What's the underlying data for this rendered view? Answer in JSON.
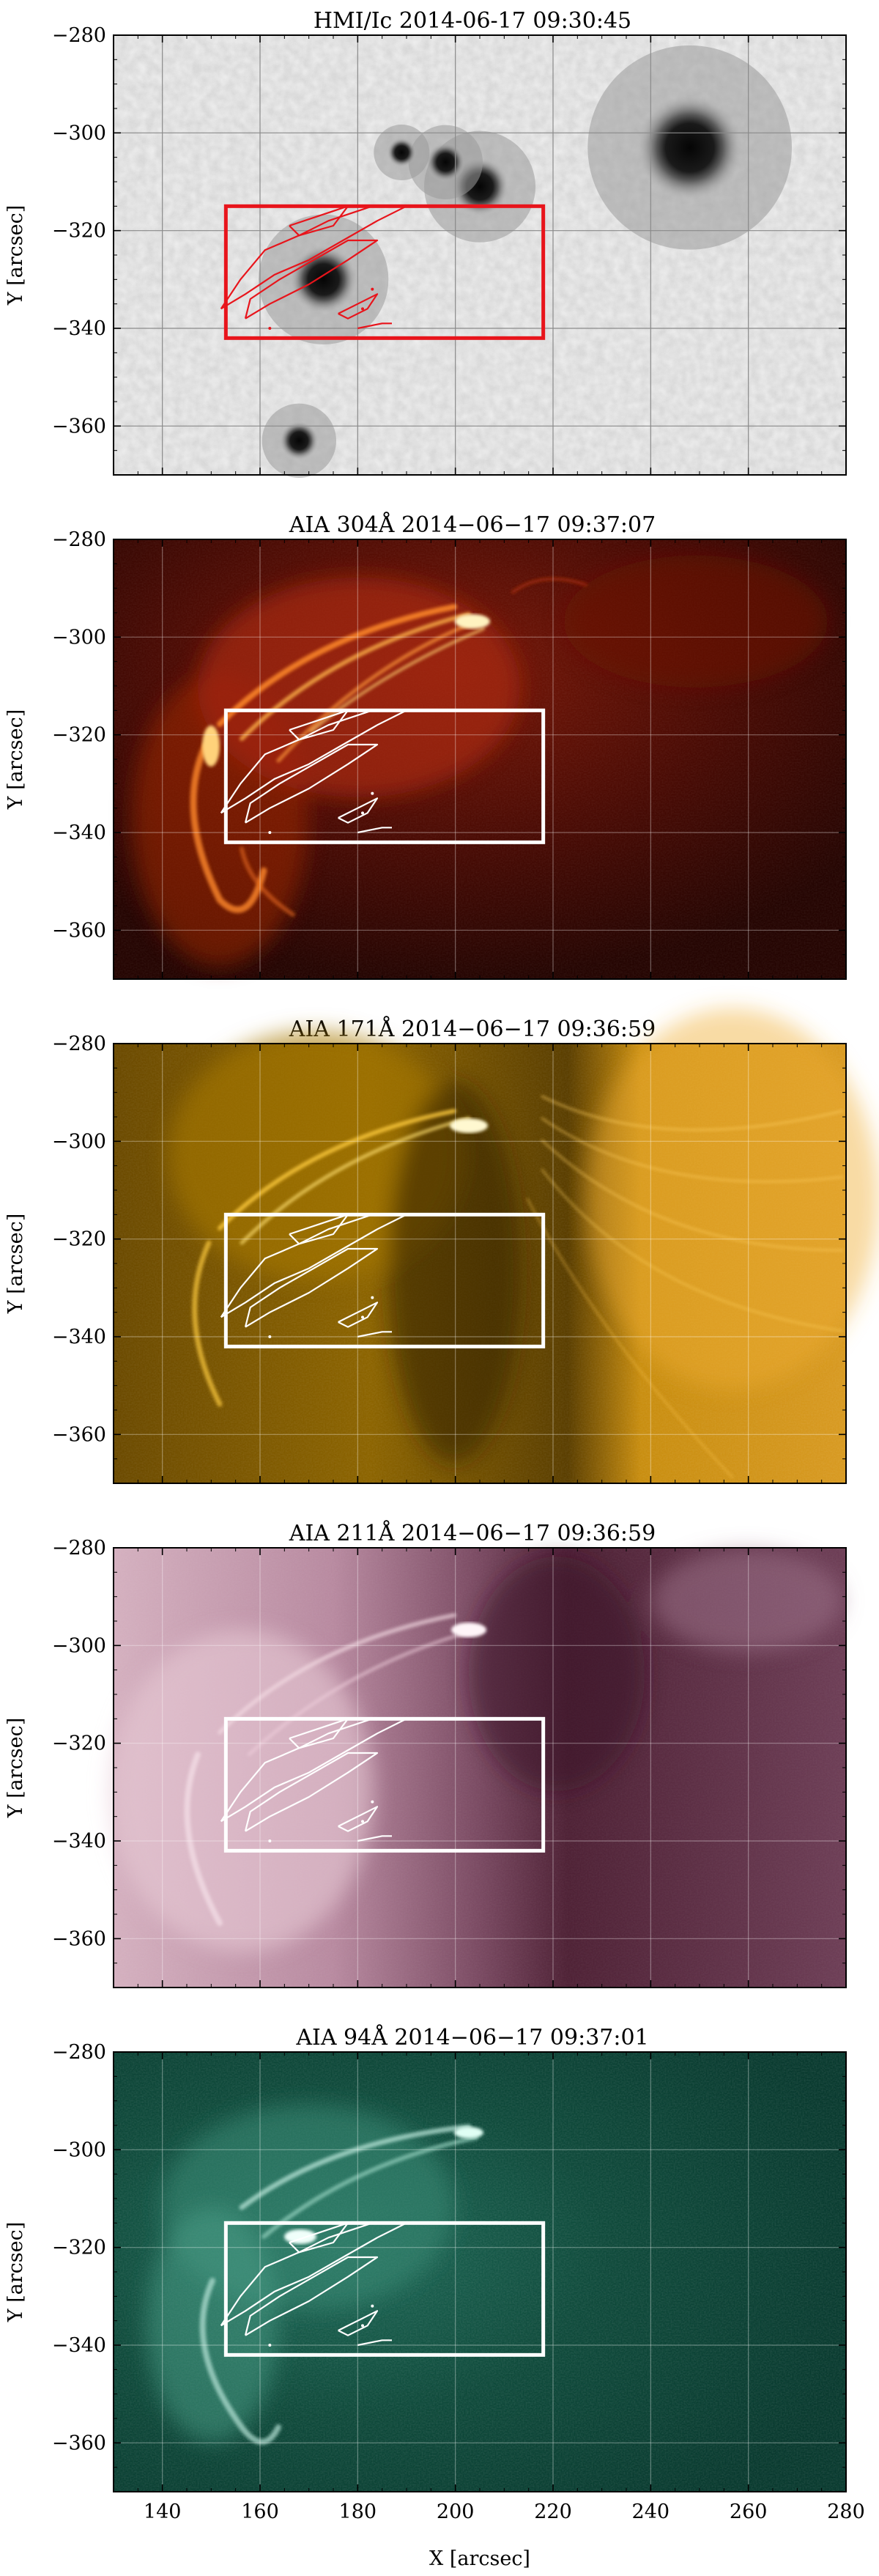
{
  "figure": {
    "xlabel": "X [arcsec]",
    "ylabel": "Y [arcsec]",
    "xlim": [
      130,
      280
    ],
    "ylim": [
      -370,
      -280
    ],
    "xticks": [
      140,
      160,
      180,
      200,
      220,
      240,
      260,
      280
    ],
    "yticks": [
      -280,
      -300,
      -320,
      -340,
      -360
    ],
    "grid": true
  },
  "chart_data": [
    {
      "type": "heatmap",
      "title": "HMI/Ic 2014-06-17 09:30:45",
      "colormap": "gray",
      "box_color": "#e8141b",
      "region_box": {
        "x": [
          153,
          218
        ],
        "y": [
          -342,
          -315
        ]
      },
      "features": [
        {
          "x": 248,
          "y": -303,
          "r": 11,
          "intensity": "dark"
        },
        {
          "x": 205,
          "y": -311,
          "r": 6,
          "intensity": "dark"
        },
        {
          "x": 198,
          "y": -306,
          "r": 4,
          "intensity": "dark"
        },
        {
          "x": 189,
          "y": -304,
          "r": 3,
          "intensity": "dark"
        },
        {
          "x": 173,
          "y": -330,
          "r": 7,
          "intensity": "dark"
        },
        {
          "x": 168,
          "y": -363,
          "r": 4,
          "intensity": "dark"
        }
      ]
    },
    {
      "type": "heatmap",
      "title": "AIA 304Å 2014−06−17 09:37:07",
      "colormap": "sdoaia304",
      "box_color": "#ffffff"
    },
    {
      "type": "heatmap",
      "title": "AIA 171Å 2014−06−17 09:36:59",
      "colormap": "sdoaia171",
      "box_color": "#ffffff"
    },
    {
      "type": "heatmap",
      "title": "AIA 211Å 2014−06−17 09:36:59",
      "colormap": "sdoaia211",
      "box_color": "#ffffff"
    },
    {
      "type": "heatmap",
      "title": "AIA 94Å 2014−06−17 09:37:01",
      "colormap": "sdoaia94",
      "box_color": "#ffffff"
    }
  ],
  "contours": {
    "main": [
      [
        152,
        -336
      ],
      [
        157,
        -333
      ],
      [
        163,
        -329
      ],
      [
        170,
        -326
      ],
      [
        177,
        -322
      ],
      [
        184,
        -318
      ],
      [
        190,
        -315
      ],
      [
        183,
        -315
      ],
      [
        174,
        -318
      ],
      [
        168,
        -321
      ],
      [
        161,
        -324
      ],
      [
        156,
        -330
      ],
      [
        152,
        -336
      ]
    ],
    "inner": [
      [
        157,
        -338
      ],
      [
        162,
        -335
      ],
      [
        170,
        -331
      ],
      [
        178,
        -326
      ],
      [
        184,
        -322
      ],
      [
        178,
        -322
      ],
      [
        171,
        -326
      ],
      [
        164,
        -330
      ],
      [
        158,
        -334
      ],
      [
        157,
        -338
      ]
    ],
    "small_a": [
      [
        166,
        -319
      ],
      [
        172,
        -317
      ],
      [
        178,
        -315
      ],
      [
        175,
        -319
      ],
      [
        168,
        -321
      ],
      [
        166,
        -319
      ]
    ],
    "small_b": [
      [
        176,
        -337
      ],
      [
        180,
        -335
      ],
      [
        184,
        -333
      ],
      [
        182,
        -336
      ],
      [
        178,
        -338
      ],
      [
        176,
        -337
      ]
    ],
    "small_c": [
      [
        180,
        -340
      ],
      [
        185,
        -339
      ],
      [
        187,
        -339
      ]
    ]
  },
  "colors": {
    "white_box": "#ffffff",
    "red_box": "#e8141b"
  }
}
